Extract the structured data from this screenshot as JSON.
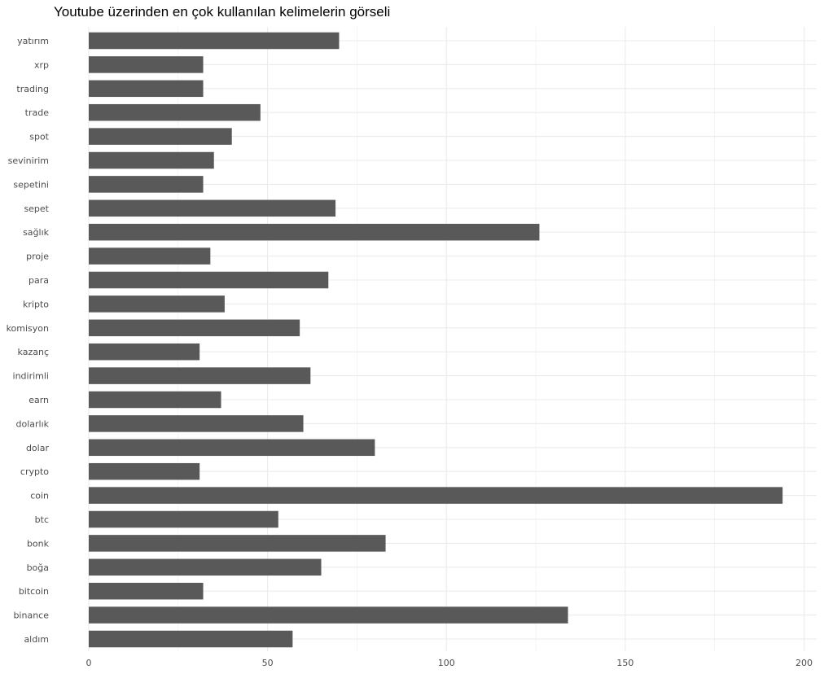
{
  "chart_data": {
    "type": "bar",
    "orientation": "horizontal",
    "title": "Youtube üzerinden en çok kullanılan kelimelerin görseli",
    "xlabel": "",
    "ylabel": "",
    "categories": [
      "aldım",
      "binance",
      "bitcoin",
      "boğa",
      "bonk",
      "btc",
      "coin",
      "crypto",
      "dolar",
      "dolarlık",
      "earn",
      "indirimli",
      "kazanç",
      "komisyon",
      "kripto",
      "para",
      "proje",
      "sağlık",
      "sepet",
      "sepetini",
      "sevinirim",
      "spot",
      "trade",
      "trading",
      "xrp",
      "yatırım"
    ],
    "values": [
      57,
      134,
      32,
      65,
      83,
      53,
      194,
      31,
      80,
      60,
      37,
      62,
      31,
      59,
      38,
      67,
      34,
      126,
      69,
      32,
      35,
      40,
      48,
      32,
      32,
      70
    ],
    "xlim": [
      0,
      203
    ],
    "xticks": [
      0,
      50,
      100,
      150,
      200
    ],
    "grid": true,
    "legend": "none",
    "bar_color": "#595959",
    "grid_color": "#ebebeb"
  }
}
